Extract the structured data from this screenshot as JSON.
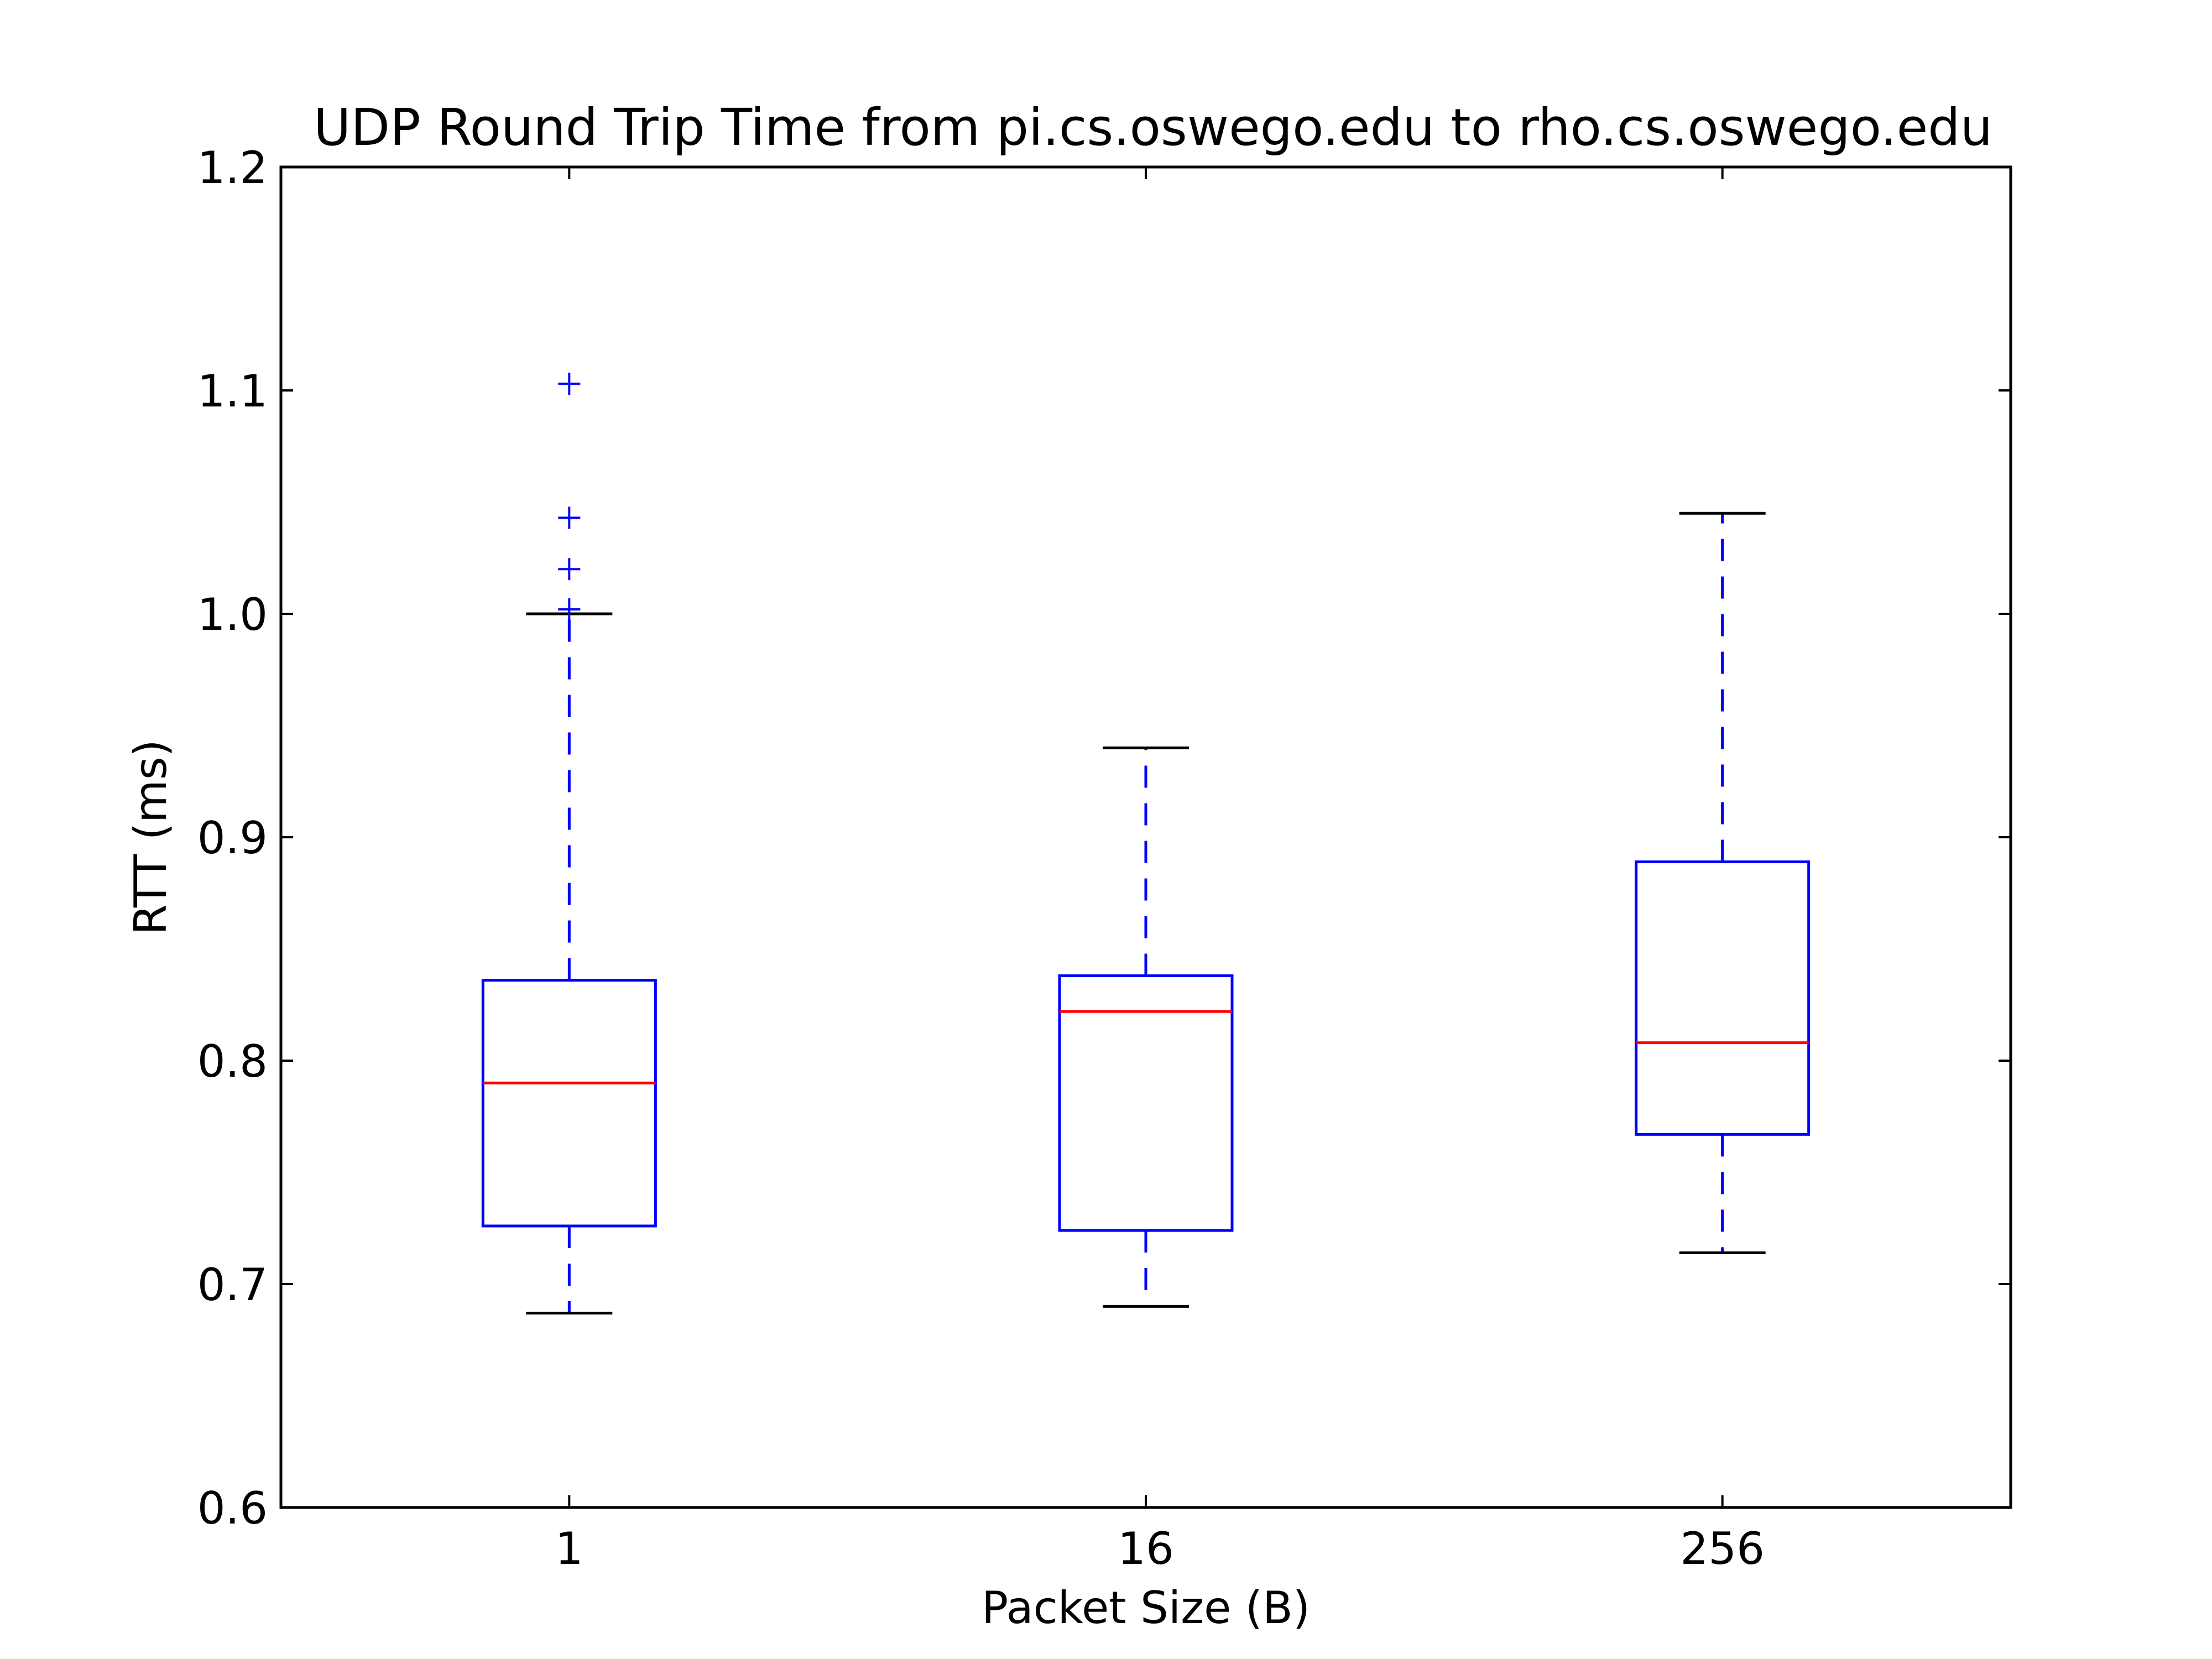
{
  "chart_data": {
    "type": "box",
    "title": "UDP Round Trip Time from pi.cs.oswego.edu to rho.cs.oswego.edu",
    "xlabel": "Packet Size (B)",
    "ylabel": "RTT (ms)",
    "categories": [
      "1",
      "16",
      "256"
    ],
    "ylim": [
      0.6,
      1.2
    ],
    "yticks": [
      "0.6",
      "0.7",
      "0.8",
      "0.9",
      "1.0",
      "1.1",
      "1.2"
    ],
    "grid": false,
    "boxes": [
      {
        "whisker_low": 0.687,
        "q1": 0.726,
        "median": 0.79,
        "q3": 0.836,
        "whisker_high": 1.0,
        "outliers": [
          1.002,
          1.02,
          1.043,
          1.103
        ]
      },
      {
        "whisker_low": 0.69,
        "q1": 0.724,
        "median": 0.822,
        "q3": 0.838,
        "whisker_high": 0.94,
        "outliers": []
      },
      {
        "whisker_low": 0.714,
        "q1": 0.767,
        "median": 0.808,
        "q3": 0.889,
        "whisker_high": 1.045,
        "outliers": []
      }
    ],
    "colors": {
      "box": "#0000ff",
      "median": "#ff0000",
      "whisker": "#0000ff",
      "cap": "#000000",
      "outlier": "#0000ff",
      "axes": "#000000"
    }
  }
}
